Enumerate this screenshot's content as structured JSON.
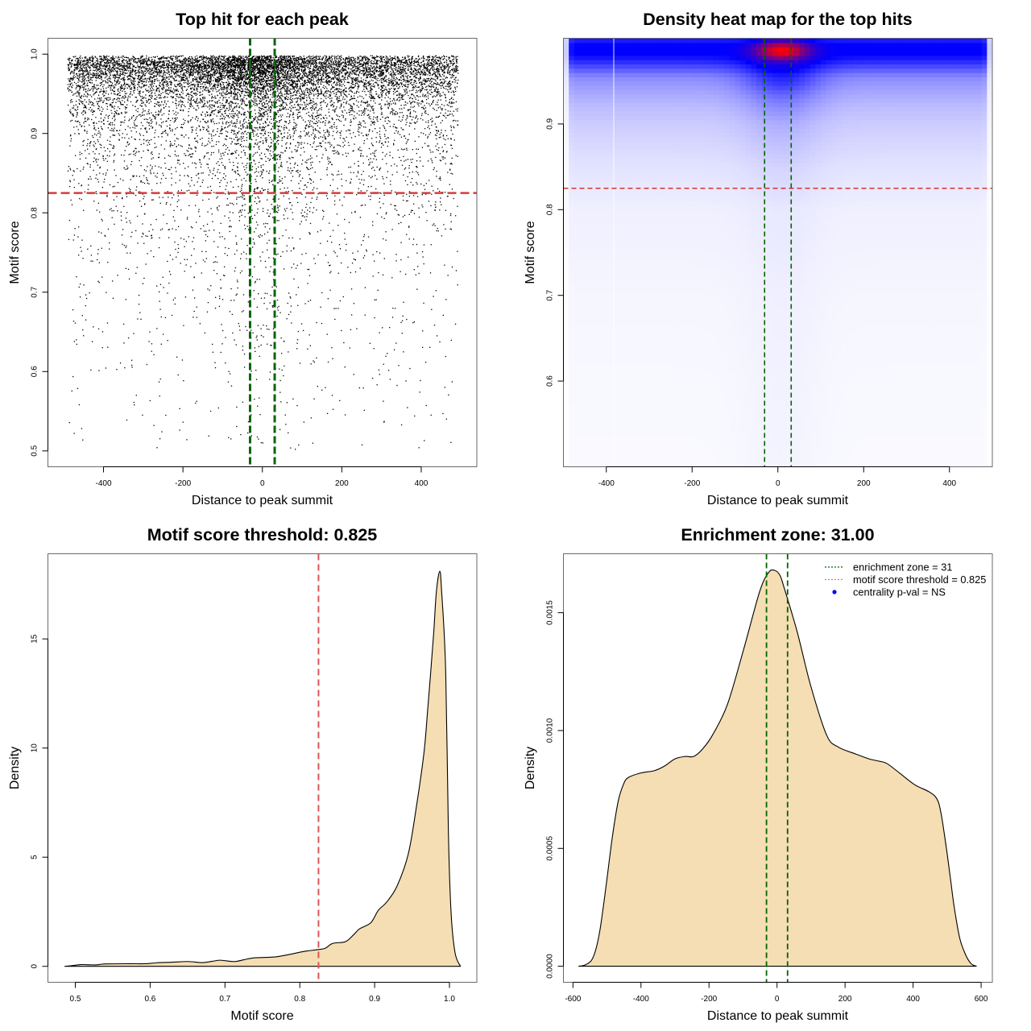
{
  "chart_data": [
    {
      "type": "scatter",
      "title": "Top hit for each peak",
      "xlabel": "Distance to peak summit",
      "ylabel": "Motif score",
      "xlim": [
        -540,
        540
      ],
      "ylim": [
        0.48,
        1.02
      ],
      "xticks": [
        -400,
        -200,
        0,
        200,
        400
      ],
      "xtick_labels": [
        "-400",
        "-200",
        "0",
        "200",
        "400"
      ],
      "yticks": [
        0.5,
        0.6,
        0.7,
        0.8,
        0.9,
        1.0
      ],
      "ytick_labels": [
        "0.5",
        "0.6",
        "0.7",
        "0.8",
        "0.9",
        "1.0"
      ],
      "points": {
        "count": 12000,
        "x_range": [
          -490,
          493
        ],
        "y_range": [
          0.5,
          0.998
        ],
        "color": "#000000"
      },
      "threshold_line": {
        "y": 0.825,
        "color": "#d43c3c"
      },
      "enrichment_zone_lines": {
        "x": [
          -31,
          31
        ],
        "color": "#0a640a"
      }
    },
    {
      "type": "heatmap",
      "title": "Density heat map for the top hits",
      "xlabel": "Distance to peak summit",
      "ylabel": "Motif score",
      "xlim": [
        -500,
        500
      ],
      "ylim": [
        0.5,
        1.0
      ],
      "xticks": [
        -400,
        -200,
        0,
        200,
        400
      ],
      "xtick_labels": [
        "-400",
        "-200",
        "0",
        "200",
        "400"
      ],
      "yticks": [
        0.6,
        0.7,
        0.8,
        0.9
      ],
      "ytick_labels": [
        "0.6",
        "0.7",
        "0.8",
        "0.9"
      ],
      "color_scale": [
        "#ffffff",
        "#0000ff",
        "#ff0000"
      ],
      "intensity_by_score": [
        [
          0.5,
          0.012
        ],
        [
          0.6,
          0.014
        ],
        [
          0.7,
          0.018
        ],
        [
          0.8,
          0.03
        ],
        [
          0.85,
          0.055
        ],
        [
          0.88,
          0.08
        ],
        [
          0.9,
          0.1
        ],
        [
          0.92,
          0.13
        ],
        [
          0.94,
          0.18
        ],
        [
          0.955,
          0.23
        ],
        [
          0.965,
          0.33
        ],
        [
          0.975,
          0.44
        ],
        [
          0.982,
          0.5
        ],
        [
          0.992,
          0.5
        ],
        [
          0.997,
          0.46
        ],
        [
          1.0,
          0.4
        ]
      ],
      "central_excess_by_score": [
        [
          0.5,
          0.01
        ],
        [
          0.8,
          0.015
        ],
        [
          0.85,
          0.03
        ],
        [
          0.9,
          0.06
        ],
        [
          0.93,
          0.12
        ],
        [
          0.95,
          0.2
        ],
        [
          0.965,
          0.2
        ],
        [
          0.98,
          0.1
        ],
        [
          1.0,
          0.0
        ]
      ],
      "central_spread": 90,
      "hotspot": {
        "x": 10,
        "y": 0.986,
        "x_spread": 60,
        "y_spread": 0.011,
        "intensity": 0.5
      },
      "threshold_line": {
        "y": 0.825,
        "color": "#d93030"
      },
      "enrichment_zone_lines": {
        "x": [
          -31,
          31
        ],
        "color": "#006400"
      }
    },
    {
      "type": "area",
      "title": "Motif score threshold: 0.825",
      "xlabel": "Motif score",
      "ylabel": "Density",
      "xlim": [
        0.4634,
        1.0366
      ],
      "ylim": [
        -0.73,
        18.9
      ],
      "xticks": [
        0.5,
        0.6,
        0.7,
        0.8,
        0.9,
        1.0
      ],
      "xtick_labels": [
        "0.5",
        "0.6",
        "0.7",
        "0.8",
        "0.9",
        "1.0"
      ],
      "yticks": [
        0,
        5,
        10,
        15
      ],
      "ytick_labels": [
        "0",
        "5",
        "10",
        "15"
      ],
      "fill": "#f5deb3",
      "curve": [
        [
          0.486,
          0
        ],
        [
          0.495,
          0.03
        ],
        [
          0.5075,
          0.08
        ],
        [
          0.52,
          0.07
        ],
        [
          0.529,
          0.07
        ],
        [
          0.54,
          0.11
        ],
        [
          0.572,
          0.12
        ],
        [
          0.594,
          0.12
        ],
        [
          0.608,
          0.16
        ],
        [
          0.63,
          0.19
        ],
        [
          0.651,
          0.22
        ],
        [
          0.669,
          0.17
        ],
        [
          0.683,
          0.23
        ],
        [
          0.694,
          0.28
        ],
        [
          0.712,
          0.22
        ],
        [
          0.725,
          0.3
        ],
        [
          0.737,
          0.38
        ],
        [
          0.755,
          0.41
        ],
        [
          0.769,
          0.44
        ],
        [
          0.787,
          0.55
        ],
        [
          0.805,
          0.68
        ],
        [
          0.825,
          0.77
        ],
        [
          0.834,
          0.83
        ],
        [
          0.844,
          1.05
        ],
        [
          0.861,
          1.13
        ],
        [
          0.872,
          1.45
        ],
        [
          0.88,
          1.72
        ],
        [
          0.895,
          2.0
        ],
        [
          0.905,
          2.57
        ],
        [
          0.916,
          2.94
        ],
        [
          0.93,
          3.68
        ],
        [
          0.945,
          5.15
        ],
        [
          0.956,
          7.35
        ],
        [
          0.966,
          9.8
        ],
        [
          0.971,
          11.8
        ],
        [
          0.975,
          13.5
        ],
        [
          0.979,
          15.3
        ],
        [
          0.9825,
          17.15
        ],
        [
          0.987,
          18.1
        ],
        [
          0.9896,
          17.15
        ],
        [
          0.995,
          13.5
        ],
        [
          0.9986,
          6.1
        ],
        [
          1.0022,
          2.45
        ],
        [
          1.0075,
          0.62
        ],
        [
          1.0147,
          0
        ]
      ],
      "threshold_line": {
        "x": 0.825,
        "color": "#dd5555"
      }
    },
    {
      "type": "area",
      "title": "Enrichment zone: 31.00",
      "xlabel": "Distance to peak summit",
      "ylabel": "Density",
      "xlim": [
        -628,
        633
      ],
      "ylim": [
        -6.8e-05,
        0.00175
      ],
      "xticks": [
        -600,
        -400,
        -200,
        0,
        200,
        400,
        600
      ],
      "xtick_labels": [
        "-600",
        "-400",
        "-200",
        "0",
        "200",
        "400",
        "600"
      ],
      "yticks": [
        0,
        0.0005,
        0.001,
        0.0015
      ],
      "ytick_labels": [
        "0.0000",
        "0.0005",
        "0.0010",
        "0.0015"
      ],
      "fill": "#f5deb3",
      "curve": [
        [
          -583,
          0
        ],
        [
          -565,
          5e-06
        ],
        [
          -546,
          2.4e-05
        ],
        [
          -533,
          7e-05
        ],
        [
          -521,
          0.00015
        ],
        [
          -510,
          0.00026
        ],
        [
          -500,
          0.00037
        ],
        [
          -484,
          0.00055
        ],
        [
          -467,
          0.0007
        ],
        [
          -452,
          0.00077
        ],
        [
          -438,
          0.0008
        ],
        [
          -400,
          0.00082
        ],
        [
          -360,
          0.00083
        ],
        [
          -330,
          0.00085
        ],
        [
          -300,
          0.00088
        ],
        [
          -270,
          0.00089
        ],
        [
          -245,
          0.00089
        ],
        [
          -220,
          0.00092
        ],
        [
          -190,
          0.00098
        ],
        [
          -146,
          0.00111
        ],
        [
          -99,
          0.00134
        ],
        [
          -51,
          0.00159
        ],
        [
          -25,
          0.00167
        ],
        [
          -8,
          0.00168
        ],
        [
          8,
          0.00166
        ],
        [
          20,
          0.00161
        ],
        [
          59,
          0.00142
        ],
        [
          99,
          0.00119
        ],
        [
          146,
          0.00098
        ],
        [
          180,
          0.00093
        ],
        [
          232,
          0.0009
        ],
        [
          270,
          0.00088
        ],
        [
          300,
          0.00087
        ],
        [
          323,
          0.00086
        ],
        [
          360,
          0.00082
        ],
        [
          405,
          0.00077
        ],
        [
          447,
          0.00074
        ],
        [
          470,
          0.00071
        ],
        [
          482,
          0.00065
        ],
        [
          497,
          0.00051
        ],
        [
          510,
          0.00037
        ],
        [
          521,
          0.00025
        ],
        [
          537,
          0.00012
        ],
        [
          554,
          5e-05
        ],
        [
          570,
          1.2e-05
        ],
        [
          586,
          0
        ]
      ],
      "enrichment_zone_lines": {
        "x": [
          -31,
          31
        ],
        "color": "#006400"
      },
      "legend": {
        "position": "top-right",
        "entries": [
          {
            "label": "enrichment zone = 31",
            "color": "#006400",
            "symbol": "dotted-line"
          },
          {
            "label": "motif score threshold = 0.825",
            "color": "#e87070",
            "symbol": "dotted-line"
          },
          {
            "label": "centrality p-val = NS",
            "color": "#0000ff",
            "symbol": "dot"
          }
        ]
      }
    }
  ]
}
